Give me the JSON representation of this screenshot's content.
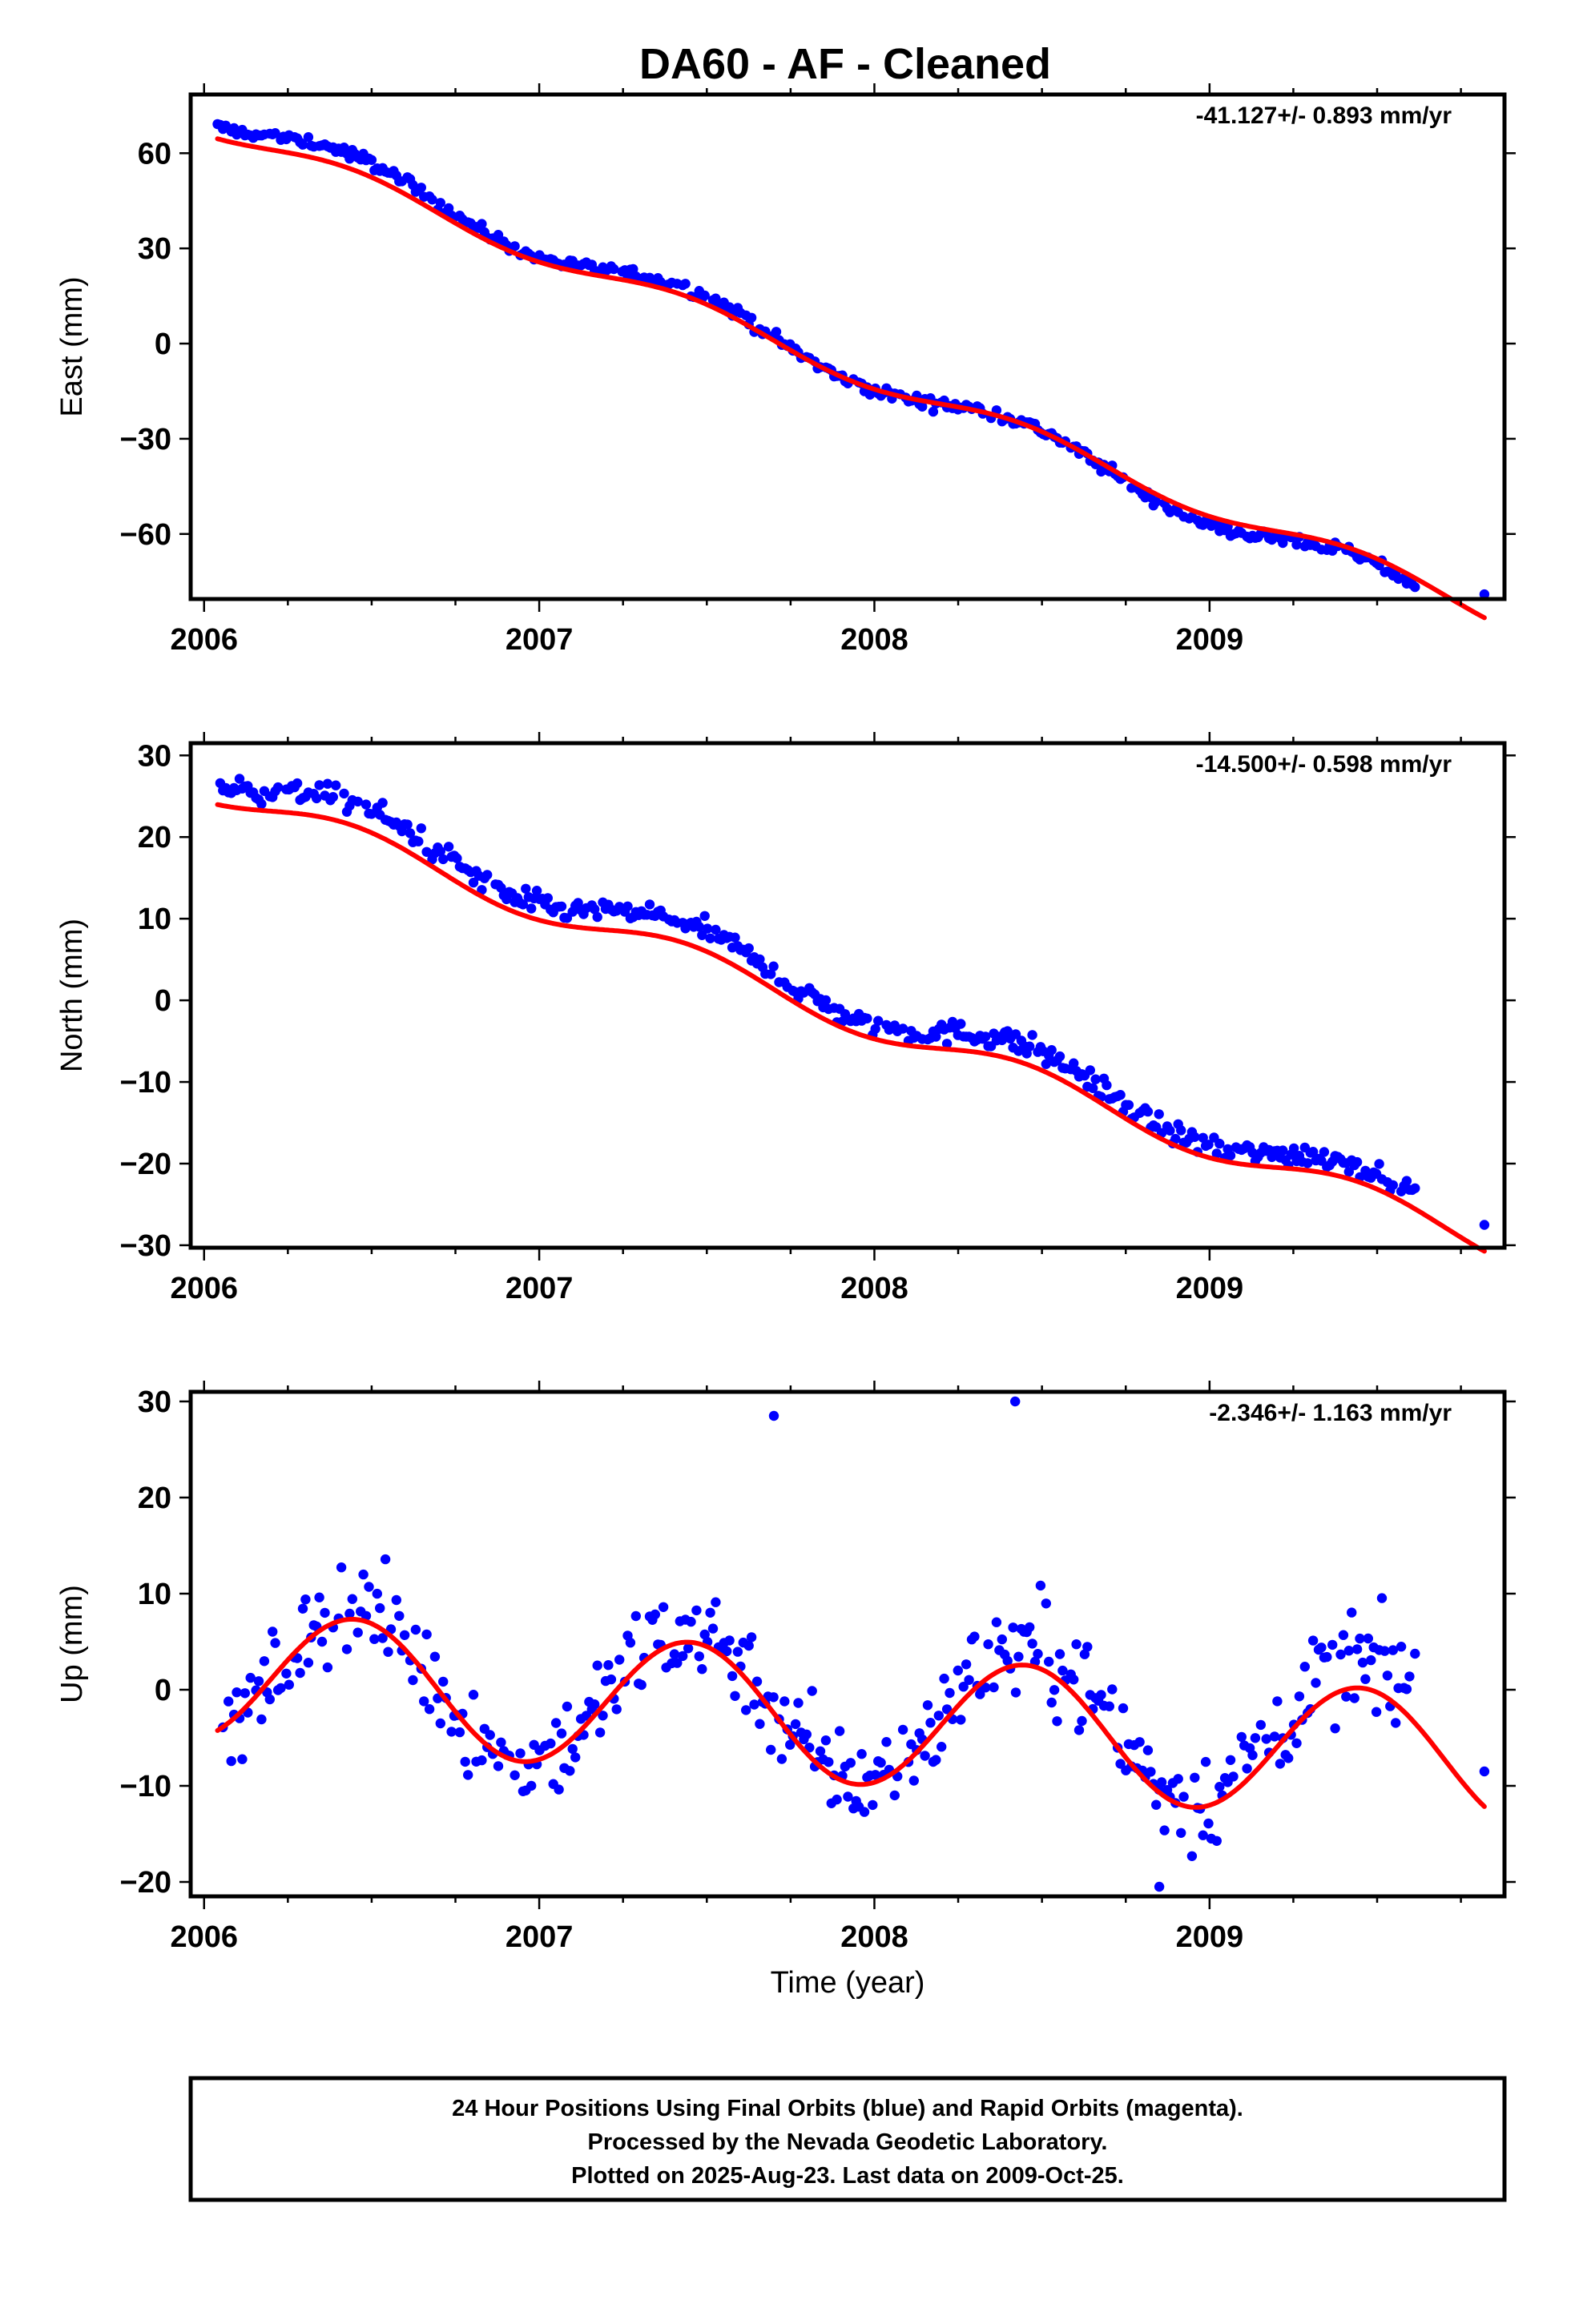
{
  "page": {
    "title": "DA60  - AF - Cleaned"
  },
  "chart_data": [
    {
      "type": "scatter",
      "panel": "east",
      "ylabel": "East (mm)",
      "xlabel": "",
      "rate_label": "-41.127+/- 0.893 mm/yr",
      "xlim": [
        2005.96,
        2009.88
      ],
      "ylim": [
        -80.5,
        78.5
      ],
      "xticks": [
        2006,
        2007,
        2008,
        2009
      ],
      "xtick_labels": [
        "2006",
        "2007",
        "2008",
        "2009"
      ],
      "yticks": [
        -60,
        -30,
        0,
        30,
        60
      ],
      "ytick_labels": [
        "−60",
        "−30",
        "0",
        "30",
        "60"
      ],
      "grid": false,
      "series": [
        {
          "name": "Final Orbits (blue)",
          "color": "#0000ff",
          "trend": {
            "start_year": 2006.04,
            "end_year": 2009.62,
            "start_value": 72,
            "end_value": -79,
            "seasonal_amp": 4.5,
            "noise": 1.3,
            "step_days": 3
          },
          "extra_points": [
            [
              2009.82,
              -79
            ]
          ]
        },
        {
          "name": "model fit",
          "color": "#ff0000",
          "trend": {
            "start_year": 2006.04,
            "end_year": 2009.82,
            "start_value": 67.5,
            "end_value": -84,
            "seasonal_amp": 3.5,
            "noise": 0
          }
        }
      ]
    },
    {
      "type": "scatter",
      "panel": "north",
      "ylabel": "North (mm)",
      "xlabel": "",
      "rate_label": "-14.500+/- 0.598 mm/yr",
      "xlim": [
        2005.96,
        2009.88
      ],
      "ylim": [
        -30.3,
        31.5
      ],
      "xticks": [
        2006,
        2007,
        2008,
        2009
      ],
      "xtick_labels": [
        "2006",
        "2007",
        "2008",
        "2009"
      ],
      "yticks": [
        -30,
        -20,
        -10,
        0,
        10,
        20,
        30
      ],
      "ytick_labels": [
        "−30",
        "−20",
        "−10",
        "0",
        "10",
        "20",
        "30"
      ],
      "grid": false,
      "series": [
        {
          "name": "Final Orbits (blue)",
          "color": "#0000ff",
          "trend": {
            "start_year": 2006.04,
            "end_year": 2009.62,
            "start_value": 28,
            "end_value": -25,
            "seasonal_amp": 2.2,
            "noise": 1.0,
            "step_days": 3
          },
          "extra_points": [
            [
              2009.82,
              -27.5
            ]
          ]
        },
        {
          "name": "model fit",
          "color": "#ff0000",
          "trend": {
            "start_year": 2006.04,
            "end_year": 2009.82,
            "start_value": 25.5,
            "end_value": -29.5,
            "seasonal_amp": 1.8,
            "noise": 0
          }
        }
      ]
    },
    {
      "type": "scatter",
      "panel": "up",
      "ylabel": "Up (mm)",
      "xlabel": "Time (year)",
      "rate_label": "-2.346+/- 1.163 mm/yr",
      "xlim": [
        2005.96,
        2009.88
      ],
      "ylim": [
        -21.5,
        31.0
      ],
      "xticks": [
        2006,
        2007,
        2008,
        2009
      ],
      "xtick_labels": [
        "2006",
        "2007",
        "2008",
        "2009"
      ],
      "yticks": [
        -20,
        -10,
        0,
        10,
        20,
        30
      ],
      "ytick_labels": [
        "−20",
        "−10",
        "0",
        "10",
        "20",
        "30"
      ],
      "grid": false,
      "series": [
        {
          "name": "Final Orbits (blue)",
          "color": "#0000ff",
          "trend": {
            "start_year": 2006.04,
            "end_year": 2009.62,
            "start_value": 1.5,
            "end_value": -5,
            "seasonal_amp": 7.5,
            "noise": 3.6,
            "step_days": 3
          },
          "extra_points": [
            [
              2007.7,
              28.5
            ],
            [
              2008.42,
              30
            ],
            [
              2009.82,
              -8.5
            ],
            [
              2008.85,
              -20.5
            ]
          ]
        },
        {
          "name": "model fit",
          "color": "#ff0000",
          "trend": {
            "start_year": 2006.04,
            "end_year": 2009.82,
            "start_value": 1.5,
            "end_value": -7.5,
            "seasonal_amp": 6.8,
            "noise": 0
          }
        }
      ]
    }
  ],
  "footer": {
    "line1": "24 Hour Positions Using Final Orbits (blue) and Rapid Orbits (magenta).",
    "line2": "Processed by the Nevada Geodetic Laboratory.",
    "line3": "Plotted on 2025-Aug-23. Last data on 2009-Oct-25."
  }
}
